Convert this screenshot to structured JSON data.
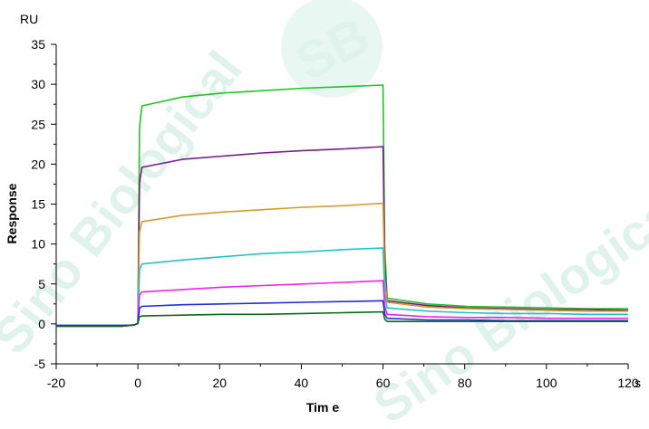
{
  "watermark": {
    "badge_text": "SB",
    "brand_text": "Sino Biological",
    "color": "#dff3ec"
  },
  "chart_data": {
    "type": "line",
    "xlabel": "Tim e",
    "ylabel": "Response",
    "y_unit": "RU",
    "x_unit": "s",
    "xlim": [
      -20,
      120
    ],
    "ylim": [
      -5,
      35
    ],
    "xticks": [
      -20,
      0,
      20,
      40,
      60,
      80,
      100,
      120
    ],
    "yticks": [
      -5,
      0,
      5,
      10,
      15,
      20,
      25,
      30,
      35
    ],
    "grid": false,
    "legend": "none",
    "injection_start": 0,
    "dissociation_start": 60,
    "series": [
      {
        "color": "#22c422",
        "association": [
          27.3,
          28.4,
          28.9,
          29.2,
          29.5,
          29.7,
          29.9
        ],
        "dissociation": [
          3.2,
          2.5,
          2.2,
          2.1,
          2.0,
          1.9,
          1.9
        ]
      },
      {
        "color": "#7a1a8a",
        "association": [
          19.6,
          20.6,
          21.0,
          21.4,
          21.7,
          21.9,
          22.2
        ],
        "dissociation": [
          2.9,
          2.3,
          2.0,
          1.9,
          1.8,
          1.8,
          1.7
        ]
      },
      {
        "color": "#d79a2a",
        "association": [
          12.8,
          13.6,
          14.0,
          14.3,
          14.6,
          14.8,
          15.1
        ],
        "dissociation": [
          2.7,
          2.1,
          1.9,
          1.8,
          1.7,
          1.6,
          1.6
        ]
      },
      {
        "color": "#22c2cc",
        "association": [
          7.5,
          8.0,
          8.4,
          8.8,
          9.0,
          9.3,
          9.5
        ],
        "dissociation": [
          2.0,
          1.6,
          1.4,
          1.3,
          1.3,
          1.2,
          1.2
        ]
      },
      {
        "color": "#ee22ee",
        "association": [
          4.0,
          4.3,
          4.6,
          4.8,
          5.0,
          5.2,
          5.4
        ],
        "dissociation": [
          1.2,
          0.9,
          0.8,
          0.8,
          0.7,
          0.7,
          0.7
        ]
      },
      {
        "color": "#1e2fd6",
        "association": [
          2.2,
          2.4,
          2.5,
          2.6,
          2.7,
          2.8,
          2.9
        ],
        "dissociation": [
          0.7,
          0.5,
          0.5,
          0.4,
          0.4,
          0.4,
          0.4
        ]
      },
      {
        "color": "#0c6a1a",
        "association": [
          1.0,
          1.1,
          1.2,
          1.2,
          1.3,
          1.4,
          1.5
        ],
        "dissociation": [
          0.3,
          0.3,
          0.3,
          0.3,
          0.3,
          0.3,
          0.3
        ]
      }
    ]
  }
}
